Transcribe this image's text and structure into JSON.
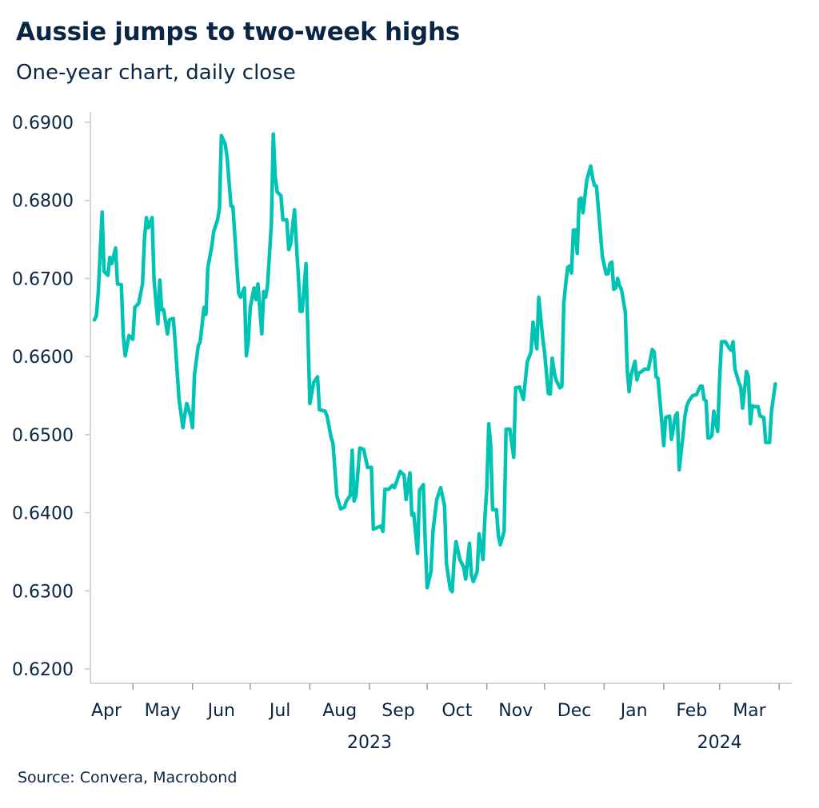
{
  "chart_data": {
    "type": "line",
    "title": "Aussie jumps to two-week highs",
    "subtitle": "One-year chart, daily close",
    "source": "Source: Convera, Macrobond",
    "xlabel": "",
    "ylabel": "",
    "ylim": [
      0.62,
      0.69
    ],
    "y_ticks": [
      "0.6200",
      "0.6300",
      "0.6400",
      "0.6500",
      "0.6600",
      "0.6700",
      "0.6800",
      "0.6900"
    ],
    "x_month_labels": [
      "Apr",
      "May",
      "Jun",
      "Jul",
      "Aug",
      "Sep",
      "Oct",
      "Nov",
      "Dec",
      "Jan",
      "Feb",
      "Mar"
    ],
    "x_year_labels": [
      {
        "label": "2023",
        "between": [
          "Aug",
          "Sep"
        ]
      },
      {
        "label": "2024",
        "between": [
          "Feb",
          "Mar"
        ]
      }
    ],
    "grid": false,
    "line_color": "#00c4b3",
    "text_color": "#0b2545",
    "series": [
      {
        "dates": [
          "2023-04-11",
          "2023-04-12",
          "2023-04-13",
          "2023-04-15",
          "2023-04-16",
          "2023-04-18",
          "2023-04-19",
          "2023-04-20",
          "2023-04-22",
          "2023-04-23",
          "2023-04-25",
          "2023-04-26",
          "2023-04-27",
          "2023-04-29",
          "2023-05-01",
          "2023-05-02",
          "2023-05-04",
          "2023-05-06",
          "2023-05-07",
          "2023-05-08",
          "2023-05-09",
          "2023-05-11",
          "2023-05-12",
          "2023-05-14",
          "2023-05-15",
          "2023-05-16",
          "2023-05-17",
          "2023-05-19",
          "2023-05-20",
          "2023-05-22",
          "2023-05-23",
          "2023-05-25",
          "2023-05-27",
          "2023-05-28",
          "2023-05-29",
          "2023-05-31",
          "2023-06-01",
          "2023-06-02",
          "2023-06-04",
          "2023-06-05",
          "2023-06-07",
          "2023-06-08",
          "2023-06-09",
          "2023-06-11",
          "2023-06-12",
          "2023-06-14",
          "2023-06-15",
          "2023-06-16",
          "2023-06-18",
          "2023-06-19",
          "2023-06-21",
          "2023-06-22",
          "2023-06-23",
          "2023-06-25",
          "2023-06-26",
          "2023-06-28",
          "2023-06-29",
          "2023-06-30",
          "2023-07-01",
          "2023-07-03",
          "2023-07-04",
          "2023-07-05",
          "2023-07-07",
          "2023-07-08",
          "2023-07-09",
          "2023-07-10",
          "2023-07-12",
          "2023-07-13",
          "2023-07-14",
          "2023-07-15",
          "2023-07-17",
          "2023-07-18",
          "2023-07-20",
          "2023-07-21",
          "2023-07-22",
          "2023-07-24",
          "2023-07-25",
          "2023-07-26",
          "2023-07-27",
          "2023-07-28",
          "2023-07-30",
          "2023-08-01",
          "2023-08-03",
          "2023-08-05",
          "2023-08-06",
          "2023-08-09",
          "2023-08-10",
          "2023-08-12",
          "2023-08-13",
          "2023-08-15",
          "2023-08-17",
          "2023-08-19",
          "2023-08-20",
          "2023-08-22",
          "2023-08-23",
          "2023-08-24",
          "2023-08-25",
          "2023-08-27",
          "2023-08-29",
          "2023-08-31",
          "2023-09-02",
          "2023-09-03",
          "2023-09-05",
          "2023-09-07",
          "2023-09-08",
          "2023-09-09",
          "2023-09-11",
          "2023-09-13",
          "2023-09-14",
          "2023-09-17",
          "2023-09-19",
          "2023-09-20",
          "2023-09-22",
          "2023-09-23",
          "2023-09-24",
          "2023-09-26",
          "2023-09-27",
          "2023-09-29",
          "2023-09-30",
          "2023-10-01",
          "2023-10-03",
          "2023-10-04",
          "2023-10-06",
          "2023-10-08",
          "2023-10-10",
          "2023-10-11",
          "2023-10-13",
          "2023-10-14",
          "2023-10-15",
          "2023-10-16",
          "2023-10-18",
          "2023-10-20",
          "2023-10-21",
          "2023-10-23",
          "2023-10-24",
          "2023-10-25",
          "2023-10-26",
          "2023-10-27",
          "2023-10-28",
          "2023-10-30",
          "2023-10-31",
          "2023-11-01",
          "2023-11-02",
          "2023-11-03",
          "2023-11-04",
          "2023-11-06",
          "2023-11-07",
          "2023-11-08",
          "2023-11-10",
          "2023-11-11",
          "2023-11-13",
          "2023-11-15",
          "2023-11-16",
          "2023-11-18",
          "2023-11-20",
          "2023-11-22",
          "2023-11-24",
          "2023-11-25",
          "2023-11-26",
          "2023-11-27",
          "2023-11-28",
          "2023-11-30",
          "2023-12-01",
          "2023-12-03",
          "2023-12-04",
          "2023-12-05",
          "2023-12-06",
          "2023-12-07",
          "2023-12-09",
          "2023-12-10",
          "2023-12-11",
          "2023-12-12",
          "2023-12-13",
          "2023-12-14",
          "2023-12-15",
          "2023-12-16",
          "2023-12-17",
          "2023-12-18",
          "2023-12-19",
          "2023-12-20",
          "2023-12-21",
          "2023-12-23",
          "2023-12-25",
          "2023-12-26",
          "2023-12-27",
          "2023-12-28",
          "2023-12-30",
          "2023-12-31",
          "2024-01-02",
          "2024-01-03",
          "2024-01-04",
          "2024-01-05",
          "2024-01-06",
          "2024-01-07",
          "2024-01-08",
          "2024-01-09",
          "2024-01-10",
          "2024-01-12",
          "2024-01-13",
          "2024-01-14",
          "2024-01-15",
          "2024-01-17",
          "2024-01-18",
          "2024-01-19",
          "2024-01-20",
          "2024-01-22",
          "2024-01-24",
          "2024-01-26",
          "2024-01-27",
          "2024-01-28",
          "2024-01-29",
          "2024-01-31",
          "2024-02-01",
          "2024-02-02",
          "2024-02-04",
          "2024-02-05",
          "2024-02-07",
          "2024-02-08",
          "2024-02-09",
          "2024-02-11",
          "2024-02-12",
          "2024-02-13",
          "2024-02-14",
          "2024-02-16",
          "2024-02-18",
          "2024-02-19",
          "2024-02-20",
          "2024-02-21",
          "2024-02-22",
          "2024-02-23",
          "2024-02-24",
          "2024-02-25",
          "2024-02-26",
          "2024-02-27",
          "2024-02-28",
          "2024-02-29",
          "2024-03-01",
          "2024-03-02",
          "2024-03-04",
          "2024-03-06",
          "2024-03-07",
          "2024-03-08",
          "2024-03-09",
          "2024-03-11",
          "2024-03-12",
          "2024-03-13",
          "2024-03-15",
          "2024-03-16",
          "2024-03-17",
          "2024-03-18",
          "2024-03-19",
          "2024-03-21",
          "2024-03-22",
          "2024-03-24",
          "2024-03-25",
          "2024-03-27",
          "2024-03-28",
          "2024-03-30"
        ],
        "values": [
          0.6647,
          0.6652,
          0.6683,
          0.6785,
          0.6709,
          0.6704,
          0.6727,
          0.6719,
          0.6739,
          0.6693,
          0.6692,
          0.6627,
          0.6601,
          0.6627,
          0.6622,
          0.6663,
          0.6668,
          0.6693,
          0.675,
          0.6778,
          0.6765,
          0.6778,
          0.6698,
          0.6642,
          0.6698,
          0.666,
          0.666,
          0.6629,
          0.6647,
          0.6649,
          0.6617,
          0.6545,
          0.6509,
          0.6526,
          0.654,
          0.6524,
          0.6509,
          0.6576,
          0.6614,
          0.6619,
          0.6663,
          0.6654,
          0.6714,
          0.6741,
          0.676,
          0.6775,
          0.679,
          0.6883,
          0.6872,
          0.6855,
          0.6793,
          0.6792,
          0.6755,
          0.6681,
          0.6676,
          0.6688,
          0.6601,
          0.6619,
          0.6663,
          0.6688,
          0.6673,
          0.6693,
          0.6629,
          0.6683,
          0.6676,
          0.6691,
          0.677,
          0.6885,
          0.6831,
          0.6811,
          0.6806,
          0.6775,
          0.6775,
          0.6737,
          0.6744,
          0.6788,
          0.6744,
          0.6704,
          0.6658,
          0.6658,
          0.6719,
          0.654,
          0.6567,
          0.6574,
          0.6532,
          0.653,
          0.6523,
          0.6497,
          0.6489,
          0.6422,
          0.6405,
          0.6407,
          0.6415,
          0.6422,
          0.648,
          0.6415,
          0.6422,
          0.6483,
          0.6481,
          0.6458,
          0.6458,
          0.6379,
          0.6381,
          0.6383,
          0.6376,
          0.643,
          0.643,
          0.6435,
          0.6432,
          0.6453,
          0.6448,
          0.6417,
          0.6451,
          0.6397,
          0.6399,
          0.6348,
          0.6429,
          0.6436,
          0.6361,
          0.6304,
          0.6325,
          0.6376,
          0.6417,
          0.6432,
          0.6409,
          0.6335,
          0.6302,
          0.6299,
          0.634,
          0.6363,
          0.634,
          0.633,
          0.6315,
          0.6361,
          0.632,
          0.6312,
          0.6318,
          0.6325,
          0.6373,
          0.634,
          0.6394,
          0.6432,
          0.6514,
          0.6487,
          0.6404,
          0.6404,
          0.6371,
          0.6359,
          0.6376,
          0.6507,
          0.6507,
          0.6471,
          0.656,
          0.6561,
          0.6545,
          0.6593,
          0.6606,
          0.6644,
          0.6627,
          0.661,
          0.6676,
          0.6625,
          0.6606,
          0.6553,
          0.6552,
          0.6598,
          0.6581,
          0.657,
          0.656,
          0.6562,
          0.6668,
          0.6693,
          0.6714,
          0.6716,
          0.6707,
          0.6762,
          0.6762,
          0.6732,
          0.6801,
          0.6803,
          0.6784,
          0.6826,
          0.6844,
          0.6829,
          0.6819,
          0.6818,
          0.676,
          0.6729,
          0.6706,
          0.6706,
          0.6719,
          0.6721,
          0.6686,
          0.6688,
          0.67,
          0.6691,
          0.6686,
          0.6657,
          0.6584,
          0.6555,
          0.6576,
          0.6594,
          0.657,
          0.6579,
          0.658,
          0.6584,
          0.6584,
          0.6609,
          0.6606,
          0.6574,
          0.6572,
          0.6516,
          0.6486,
          0.6522,
          0.6524,
          0.6494,
          0.6524,
          0.6528,
          0.6455,
          0.6499,
          0.6524,
          0.6537,
          0.6543,
          0.655,
          0.6551,
          0.6557,
          0.6562,
          0.6562,
          0.6545,
          0.6543,
          0.6496,
          0.6496,
          0.6499,
          0.653,
          0.6516,
          0.6504,
          0.657,
          0.6619,
          0.6619,
          0.6611,
          0.6608,
          0.6619,
          0.6584,
          0.6567,
          0.6561,
          0.6534,
          0.6581,
          0.6574,
          0.6514,
          0.6537,
          0.6536,
          0.6536,
          0.6524,
          0.6522,
          0.649,
          0.649,
          0.653,
          0.6565
        ]
      }
    ]
  }
}
